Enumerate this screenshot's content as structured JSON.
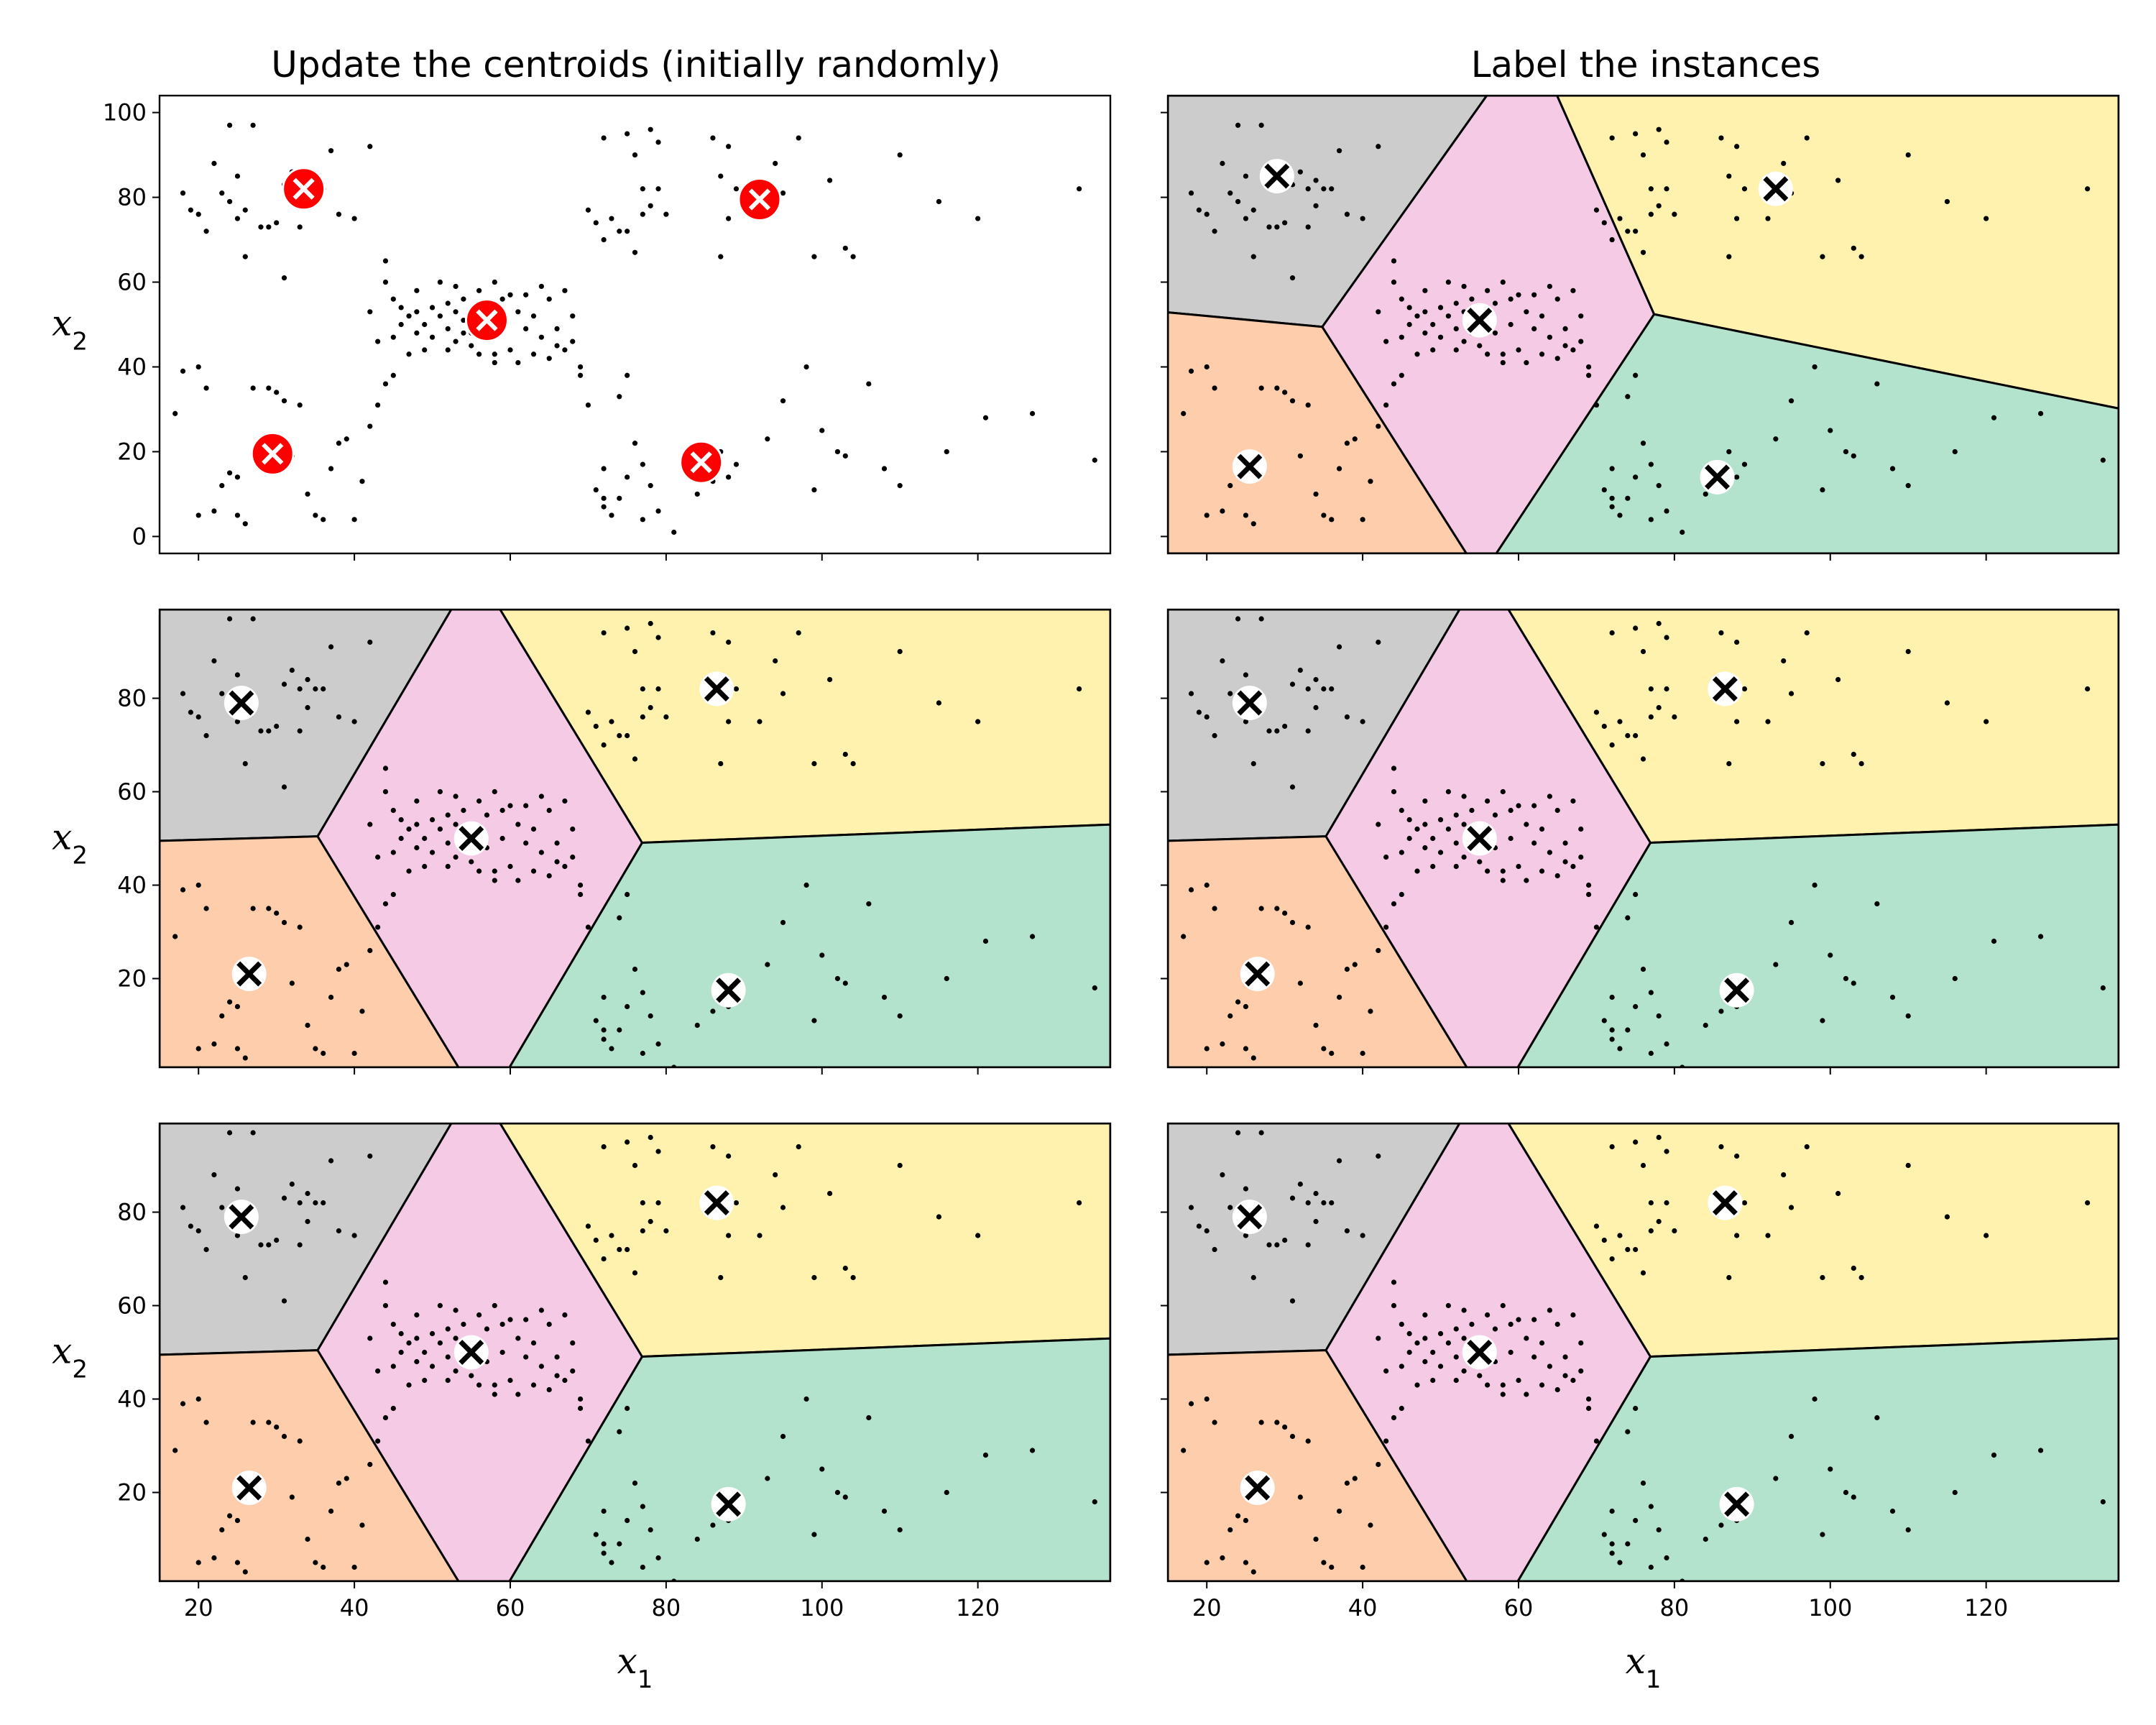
{
  "figure": {
    "column_titles": [
      "Update the centroids (initially randomly)",
      "Label the instances"
    ],
    "xlabel": "x1",
    "ylabel": "x2"
  },
  "colors": {
    "gray": "#cccccc",
    "orange": "#fdcdac",
    "pink": "#f4cae4",
    "yellow": "#fff2ae",
    "green": "#b3e2cd",
    "centroid_init_fill": "#ff0000",
    "centroid_init_cross": "#ffffff",
    "centroid_fill": "#ffffff",
    "centroid_cross": "#000000",
    "points": "#000000",
    "boundary": "#000000"
  },
  "chart_data": [
    {
      "type": "scatter",
      "panel": "row1-left",
      "title": "Update the centroids (initially randomly)",
      "xlabel": "",
      "ylabel": "x2",
      "xlim": [
        15,
        137
      ],
      "ylim": [
        -4,
        104
      ],
      "yticks": [
        0,
        20,
        40,
        60,
        80,
        100
      ],
      "x_tick_labels_shown": false,
      "regions_shown": false,
      "centroid_style": "initial",
      "centroids": [
        [
          33.5,
          82
        ],
        [
          29.5,
          19.5
        ],
        [
          57,
          51
        ],
        [
          92,
          79.5
        ],
        [
          84.5,
          17.5
        ]
      ]
    },
    {
      "type": "scatter",
      "panel": "row1-right",
      "title": "Label the instances",
      "xlabel": "",
      "ylabel": "",
      "xlim": [
        15,
        137
      ],
      "ylim": [
        -4,
        104
      ],
      "yticks": [
        0,
        20,
        40,
        60,
        80,
        100
      ],
      "y_tick_labels_shown": false,
      "x_tick_labels_shown": false,
      "regions_shown": true,
      "centroid_style": "final",
      "centroids": [
        [
          29,
          85
        ],
        [
          25.5,
          16.5
        ],
        [
          55,
          51
        ],
        [
          93,
          82
        ],
        [
          85.5,
          14
        ]
      ]
    },
    {
      "type": "scatter",
      "panel": "row2-left",
      "title": "",
      "xlabel": "",
      "ylabel": "x2",
      "xlim": [
        15,
        137
      ],
      "ylim": [
        1,
        99
      ],
      "yticks": [
        20,
        40,
        60,
        80
      ],
      "x_tick_labels_shown": false,
      "regions_shown": true,
      "centroid_style": "final",
      "centroids": [
        [
          25.5,
          79
        ],
        [
          26.5,
          21
        ],
        [
          55,
          50
        ],
        [
          86.5,
          82
        ],
        [
          88,
          17.5
        ]
      ]
    },
    {
      "type": "scatter",
      "panel": "row2-right",
      "title": "",
      "xlabel": "",
      "ylabel": "",
      "xlim": [
        15,
        137
      ],
      "ylim": [
        1,
        99
      ],
      "yticks": [
        20,
        40,
        60,
        80
      ],
      "y_tick_labels_shown": false,
      "x_tick_labels_shown": false,
      "regions_shown": true,
      "centroid_style": "final",
      "centroids": [
        [
          25.5,
          79
        ],
        [
          26.5,
          21
        ],
        [
          55,
          50
        ],
        [
          86.5,
          82
        ],
        [
          88,
          17.5
        ]
      ]
    },
    {
      "type": "scatter",
      "panel": "row3-left",
      "title": "",
      "xlabel": "x1",
      "ylabel": "x2",
      "xlim": [
        15,
        137
      ],
      "ylim": [
        1,
        99
      ],
      "xticks": [
        20,
        40,
        60,
        80,
        100,
        120
      ],
      "yticks": [
        20,
        40,
        60,
        80
      ],
      "regions_shown": true,
      "centroid_style": "final",
      "centroids": [
        [
          25.5,
          79
        ],
        [
          26.5,
          21
        ],
        [
          55,
          50
        ],
        [
          86.5,
          82
        ],
        [
          88,
          17.5
        ]
      ]
    },
    {
      "type": "scatter",
      "panel": "row3-right",
      "title": "",
      "xlabel": "x1",
      "ylabel": "",
      "xlim": [
        15,
        137
      ],
      "ylim": [
        1,
        99
      ],
      "xticks": [
        20,
        40,
        60,
        80,
        100,
        120
      ],
      "yticks": [
        20,
        40,
        60,
        80
      ],
      "y_tick_labels_shown": false,
      "regions_shown": true,
      "centroid_style": "final",
      "centroids": [
        [
          25.5,
          79
        ],
        [
          26.5,
          21
        ],
        [
          55,
          50
        ],
        [
          86.5,
          82
        ],
        [
          88,
          17.5
        ]
      ]
    }
  ],
  "instances": [
    [
      18,
      81
    ],
    [
      19,
      77
    ],
    [
      20,
      76
    ],
    [
      21,
      72
    ],
    [
      22,
      88
    ],
    [
      23,
      81
    ],
    [
      24,
      79
    ],
    [
      24,
      97
    ],
    [
      25,
      85
    ],
    [
      25,
      75
    ],
    [
      26,
      66
    ],
    [
      26,
      77
    ],
    [
      27,
      97
    ],
    [
      28,
      73
    ],
    [
      29,
      73
    ],
    [
      30,
      74
    ],
    [
      31,
      83
    ],
    [
      32,
      86
    ],
    [
      33,
      82
    ],
    [
      34,
      84
    ],
    [
      34,
      78
    ],
    [
      35,
      82
    ],
    [
      36,
      82
    ],
    [
      37,
      91
    ],
    [
      38,
      76
    ],
    [
      40,
      75
    ],
    [
      42,
      92
    ],
    [
      31,
      61
    ],
    [
      33,
      73
    ],
    [
      18,
      39
    ],
    [
      20,
      40
    ],
    [
      21,
      35
    ],
    [
      22,
      6
    ],
    [
      24,
      15
    ],
    [
      25,
      14
    ],
    [
      25,
      5
    ],
    [
      26,
      3
    ],
    [
      27,
      35
    ],
    [
      29,
      35
    ],
    [
      30,
      34
    ],
    [
      31,
      32
    ],
    [
      32,
      19
    ],
    [
      33,
      31
    ],
    [
      34,
      10
    ],
    [
      35,
      5
    ],
    [
      36,
      4
    ],
    [
      37,
      16
    ],
    [
      38,
      22
    ],
    [
      39,
      23
    ],
    [
      40,
      4
    ],
    [
      41,
      13
    ],
    [
      42,
      26
    ],
    [
      43,
      31
    ],
    [
      44,
      36
    ],
    [
      20,
      5
    ],
    [
      23,
      12
    ],
    [
      17,
      29
    ],
    [
      44,
      65
    ],
    [
      44,
      60
    ],
    [
      45,
      56
    ],
    [
      45,
      47
    ],
    [
      46,
      50
    ],
    [
      47,
      43
    ],
    [
      47,
      52
    ],
    [
      48,
      58
    ],
    [
      48,
      48
    ],
    [
      49,
      50
    ],
    [
      49,
      44
    ],
    [
      50,
      54
    ],
    [
      50,
      47
    ],
    [
      51,
      60
    ],
    [
      51,
      52
    ],
    [
      52,
      55
    ],
    [
      52,
      49
    ],
    [
      53,
      59
    ],
    [
      53,
      46
    ],
    [
      54,
      56
    ],
    [
      54,
      51
    ],
    [
      55,
      48
    ],
    [
      55,
      45
    ],
    [
      56,
      58
    ],
    [
      56,
      52
    ],
    [
      57,
      55
    ],
    [
      57,
      48
    ],
    [
      58,
      60
    ],
    [
      58,
      43
    ],
    [
      59,
      56
    ],
    [
      59,
      50
    ],
    [
      60,
      44
    ],
    [
      60,
      57
    ],
    [
      61,
      53
    ],
    [
      61,
      41
    ],
    [
      62,
      57
    ],
    [
      62,
      49
    ],
    [
      63,
      43
    ],
    [
      63,
      52
    ],
    [
      64,
      59
    ],
    [
      64,
      47
    ],
    [
      65,
      42
    ],
    [
      65,
      56
    ],
    [
      66,
      49
    ],
    [
      66,
      45
    ],
    [
      67,
      58
    ],
    [
      67,
      44
    ],
    [
      68,
      52
    ],
    [
      68,
      46
    ],
    [
      69,
      40
    ],
    [
      52,
      44
    ],
    [
      53,
      53
    ],
    [
      46,
      54
    ],
    [
      48,
      53
    ],
    [
      42,
      53
    ],
    [
      43,
      46
    ],
    [
      45,
      38
    ],
    [
      54,
      48
    ],
    [
      56,
      43
    ],
    [
      58,
      41
    ],
    [
      70,
      77
    ],
    [
      71,
      74
    ],
    [
      72,
      94
    ],
    [
      72,
      70
    ],
    [
      73,
      75
    ],
    [
      74,
      72
    ],
    [
      75,
      95
    ],
    [
      75,
      72
    ],
    [
      76,
      90
    ],
    [
      76,
      67
    ],
    [
      77,
      82
    ],
    [
      77,
      76
    ],
    [
      78,
      78
    ],
    [
      78,
      96
    ],
    [
      79,
      82
    ],
    [
      79,
      93
    ],
    [
      80,
      76
    ],
    [
      86,
      94
    ],
    [
      87,
      85
    ],
    [
      88,
      92
    ],
    [
      88,
      75
    ],
    [
      89,
      82
    ],
    [
      87,
      66
    ],
    [
      95,
      81
    ],
    [
      97,
      94
    ],
    [
      99,
      66
    ],
    [
      103,
      68
    ],
    [
      104,
      66
    ],
    [
      110,
      90
    ],
    [
      115,
      79
    ],
    [
      120,
      75
    ],
    [
      133,
      82
    ],
    [
      92,
      75
    ],
    [
      94,
      88
    ],
    [
      101,
      84
    ],
    [
      71,
      11
    ],
    [
      72,
      9
    ],
    [
      72,
      7
    ],
    [
      73,
      5
    ],
    [
      74,
      9
    ],
    [
      75,
      14
    ],
    [
      76,
      22
    ],
    [
      77,
      4
    ],
    [
      77,
      17
    ],
    [
      78,
      12
    ],
    [
      79,
      6
    ],
    [
      81,
      1
    ],
    [
      84,
      10
    ],
    [
      86,
      13
    ],
    [
      87,
      20
    ],
    [
      88,
      14
    ],
    [
      89,
      17
    ],
    [
      93,
      23
    ],
    [
      99,
      11
    ],
    [
      100,
      25
    ],
    [
      102,
      20
    ],
    [
      103,
      19
    ],
    [
      106,
      36
    ],
    [
      110,
      12
    ],
    [
      116,
      20
    ],
    [
      121,
      28
    ],
    [
      127,
      29
    ],
    [
      135,
      18
    ],
    [
      108,
      16
    ],
    [
      72,
      16
    ],
    [
      74,
      33
    ],
    [
      75,
      38
    ],
    [
      95,
      32
    ],
    [
      98,
      40
    ],
    [
      70,
      31
    ],
    [
      69,
      38
    ]
  ]
}
